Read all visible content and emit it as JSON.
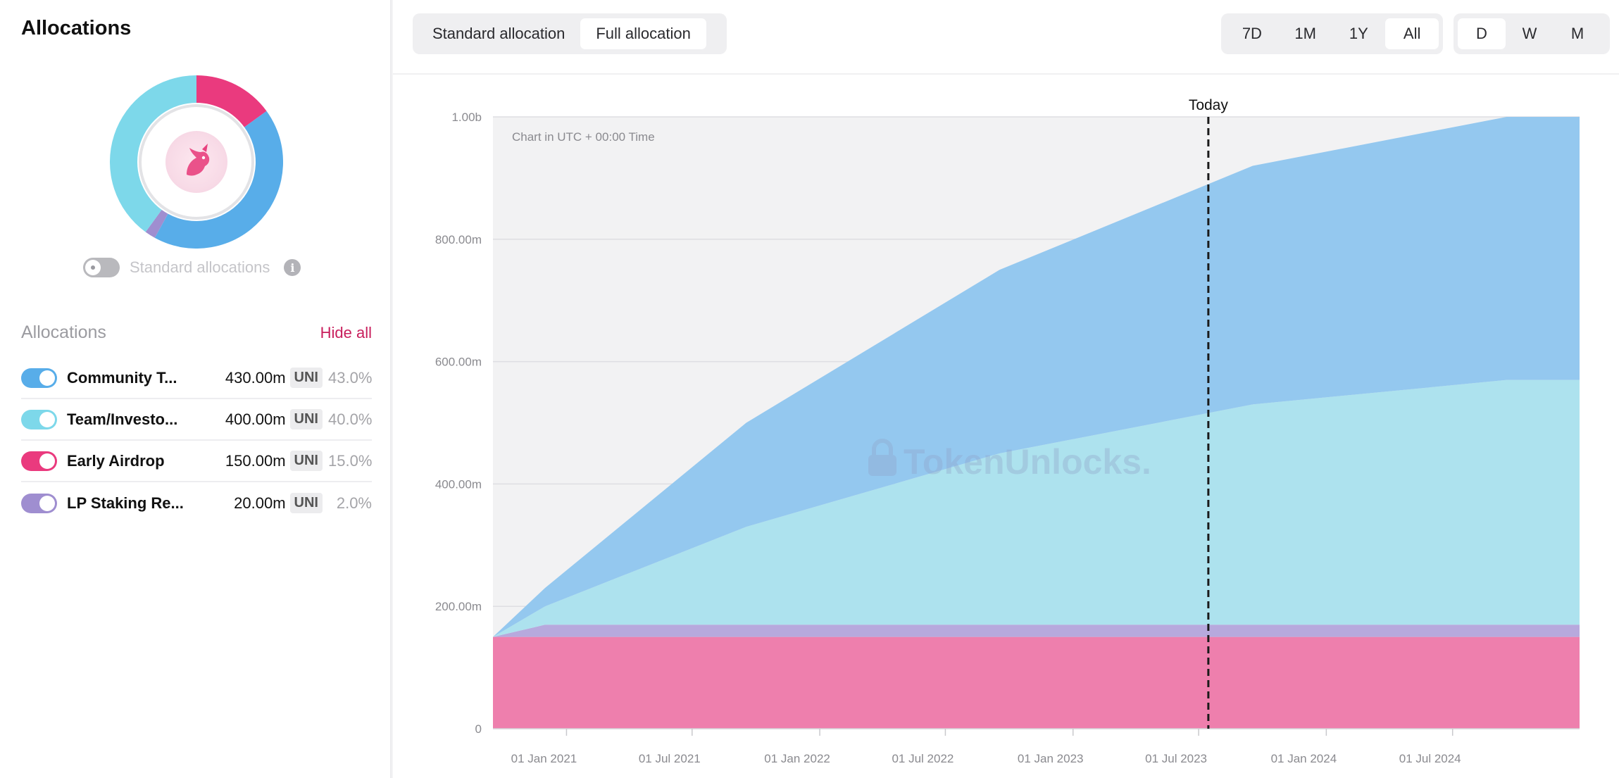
{
  "sidebar": {
    "title": "Allocations",
    "standard_toggle_label": "Standard allocations",
    "standard_toggle_on": false,
    "list_title": "Allocations",
    "hide_all_label": "Hide all",
    "items": [
      {
        "name": "Community T...",
        "amount": "430.00m",
        "unit": "UNI",
        "percent": "43.0%",
        "color": "#58ade9",
        "enabled": true
      },
      {
        "name": "Team/Investo...",
        "amount": "400.00m",
        "unit": "UNI",
        "percent": "40.0%",
        "color": "#7dd8ea",
        "enabled": true
      },
      {
        "name": "Early Airdrop",
        "amount": "150.00m",
        "unit": "UNI",
        "percent": "15.0%",
        "color": "#ea3a7e",
        "enabled": true
      },
      {
        "name": "LP Staking Re...",
        "amount": "20.00m",
        "unit": "UNI",
        "percent": "2.0%",
        "color": "#9f8ed0",
        "enabled": true
      }
    ]
  },
  "toolbar": {
    "allocation_modes": [
      "Standard allocation",
      "Full allocation"
    ],
    "allocation_mode_active": "Full allocation",
    "ranges": [
      "7D",
      "1M",
      "1Y",
      "All"
    ],
    "range_active": "All",
    "granularities": [
      "D",
      "W",
      "M"
    ],
    "granularity_active": "D"
  },
  "chart_data": {
    "type": "area",
    "stacked": true,
    "note": "Chart in UTC + 00:00 Time",
    "watermark": "TokenUnlocks.",
    "today_label": "Today",
    "today_date": "2023-07-15",
    "ylim": [
      0,
      1000
    ],
    "y_ticks": [
      0,
      200,
      400,
      600,
      800,
      1000
    ],
    "y_tick_labels": [
      "0",
      "200.00m",
      "400.00m",
      "600.00m",
      "800.00m",
      "1.00b"
    ],
    "x_range": [
      "2020-09-17",
      "2024-12-31"
    ],
    "x_ticks": [
      "2021-01-01",
      "2021-07-01",
      "2022-01-01",
      "2022-07-01",
      "2023-01-01",
      "2023-07-01",
      "2024-01-01",
      "2024-07-01"
    ],
    "x_tick_labels": [
      "01 Jan 2021",
      "01 Jul 2021",
      "01 Jan 2022",
      "01 Jul 2022",
      "01 Jan 2023",
      "01 Jul 2023",
      "01 Jan 2024",
      "01 Jul 2024"
    ],
    "x": [
      "2020-09-17",
      "2020-12-01",
      "2021-09-17",
      "2022-09-17",
      "2023-09-17",
      "2024-09-17",
      "2024-12-31"
    ],
    "series": [
      {
        "name": "Early Airdrop",
        "color": "#ee7fad",
        "values": [
          150,
          150,
          150,
          150,
          150,
          150,
          150
        ]
      },
      {
        "name": "LP Staking Re...",
        "color": "#b7a9dd",
        "values": [
          0,
          20,
          20,
          20,
          20,
          20,
          20
        ]
      },
      {
        "name": "Team/Investo...",
        "color": "#ade2ee",
        "values": [
          0,
          30,
          160,
          280,
          360,
          400,
          400
        ]
      },
      {
        "name": "Community T...",
        "color": "#94c8ef",
        "values": [
          0,
          30,
          170,
          300,
          390,
          430,
          430
        ]
      }
    ]
  }
}
